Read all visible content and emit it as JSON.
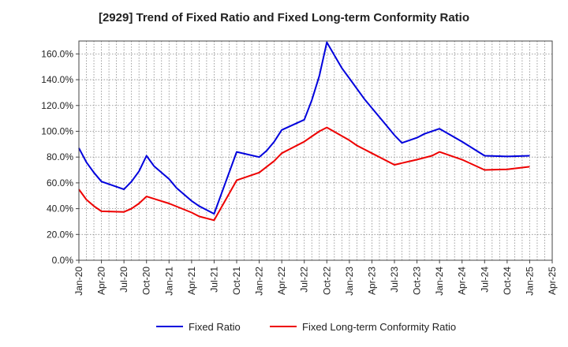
{
  "chart_data": {
    "type": "line",
    "title": "[2929]  Trend of Fixed Ratio and Fixed Long-term Conformity Ratio",
    "xlabel": "",
    "ylabel": "",
    "ylim": [
      0,
      170
    ],
    "y_ticks": [
      0,
      20,
      40,
      60,
      80,
      100,
      120,
      140,
      160
    ],
    "y_tick_labels": [
      "0.0%",
      "20.0%",
      "40.0%",
      "60.0%",
      "80.0%",
      "100.0%",
      "120.0%",
      "140.0%",
      "160.0%"
    ],
    "x_tick_labels": [
      "Jan-20",
      "Apr-20",
      "Jul-20",
      "Oct-20",
      "Jan-21",
      "Apr-21",
      "Jul-21",
      "Oct-21",
      "Jan-22",
      "Apr-22",
      "Jul-22",
      "Oct-22",
      "Jan-23",
      "Apr-23",
      "Jul-23",
      "Oct-23",
      "Jan-24",
      "Apr-24",
      "Jul-24",
      "Oct-24",
      "Jan-25",
      "Apr-25"
    ],
    "x_months_total": 63,
    "grid": true,
    "legend_position": "bottom",
    "series": [
      {
        "name": "Fixed Ratio",
        "color": "#0000dd",
        "points": [
          {
            "x": "Jan-20",
            "y": 87
          },
          {
            "x": "Feb-20",
            "y": 76
          },
          {
            "x": "Mar-20",
            "y": 68
          },
          {
            "x": "Apr-20",
            "y": 61
          },
          {
            "x": "Jul-20",
            "y": 55
          },
          {
            "x": "Aug-20",
            "y": 61
          },
          {
            "x": "Sep-20",
            "y": 69
          },
          {
            "x": "Oct-20",
            "y": 81
          },
          {
            "x": "Nov-20",
            "y": 73
          },
          {
            "x": "Jan-21",
            "y": 63
          },
          {
            "x": "Feb-21",
            "y": 56
          },
          {
            "x": "Apr-21",
            "y": 46
          },
          {
            "x": "May-21",
            "y": 42
          },
          {
            "x": "Jul-21",
            "y": 36
          },
          {
            "x": "Oct-21",
            "y": 84
          },
          {
            "x": "Jan-22",
            "y": 80
          },
          {
            "x": "Feb-22",
            "y": 85
          },
          {
            "x": "Mar-22",
            "y": 92
          },
          {
            "x": "Apr-22",
            "y": 101
          },
          {
            "x": "Jul-22",
            "y": 109
          },
          {
            "x": "Aug-22",
            "y": 124
          },
          {
            "x": "Sep-22",
            "y": 143
          },
          {
            "x": "Oct-22",
            "y": 169
          },
          {
            "x": "Nov-22",
            "y": 159
          },
          {
            "x": "Dec-22",
            "y": 149
          },
          {
            "x": "Jan-23",
            "y": 141
          },
          {
            "x": "Mar-23",
            "y": 125
          },
          {
            "x": "Apr-23",
            "y": 118
          },
          {
            "x": "Jun-23",
            "y": 104
          },
          {
            "x": "Jul-23",
            "y": 97
          },
          {
            "x": "Aug-23",
            "y": 91
          },
          {
            "x": "Oct-23",
            "y": 95
          },
          {
            "x": "Nov-23",
            "y": 98
          },
          {
            "x": "Jan-24",
            "y": 102
          },
          {
            "x": "Apr-24",
            "y": 92
          },
          {
            "x": "Jul-24",
            "y": 81
          },
          {
            "x": "Oct-24",
            "y": 80.5
          },
          {
            "x": "Jan-25",
            "y": 81
          }
        ]
      },
      {
        "name": "Fixed Long-term Conformity Ratio",
        "color": "#ee0000",
        "points": [
          {
            "x": "Jan-20",
            "y": 55
          },
          {
            "x": "Feb-20",
            "y": 47
          },
          {
            "x": "Mar-20",
            "y": 42
          },
          {
            "x": "Apr-20",
            "y": 38
          },
          {
            "x": "Jul-20",
            "y": 37.5
          },
          {
            "x": "Aug-20",
            "y": 40
          },
          {
            "x": "Sep-20",
            "y": 44
          },
          {
            "x": "Oct-20",
            "y": 49.5
          },
          {
            "x": "Jan-21",
            "y": 44
          },
          {
            "x": "Apr-21",
            "y": 37
          },
          {
            "x": "May-21",
            "y": 34
          },
          {
            "x": "Jul-21",
            "y": 31
          },
          {
            "x": "Oct-21",
            "y": 62
          },
          {
            "x": "Jan-22",
            "y": 68
          },
          {
            "x": "Mar-22",
            "y": 77
          },
          {
            "x": "Apr-22",
            "y": 83
          },
          {
            "x": "Jul-22",
            "y": 92
          },
          {
            "x": "Aug-22",
            "y": 96
          },
          {
            "x": "Sep-22",
            "y": 100
          },
          {
            "x": "Oct-22",
            "y": 103
          },
          {
            "x": "Jan-23",
            "y": 93
          },
          {
            "x": "Feb-23",
            "y": 89
          },
          {
            "x": "Apr-23",
            "y": 83
          },
          {
            "x": "Jul-23",
            "y": 74
          },
          {
            "x": "Oct-23",
            "y": 78
          },
          {
            "x": "Dec-23",
            "y": 81
          },
          {
            "x": "Jan-24",
            "y": 84
          },
          {
            "x": "Apr-24",
            "y": 78
          },
          {
            "x": "Jul-24",
            "y": 70
          },
          {
            "x": "Oct-24",
            "y": 70.5
          },
          {
            "x": "Jan-25",
            "y": 72.5
          }
        ]
      }
    ]
  }
}
